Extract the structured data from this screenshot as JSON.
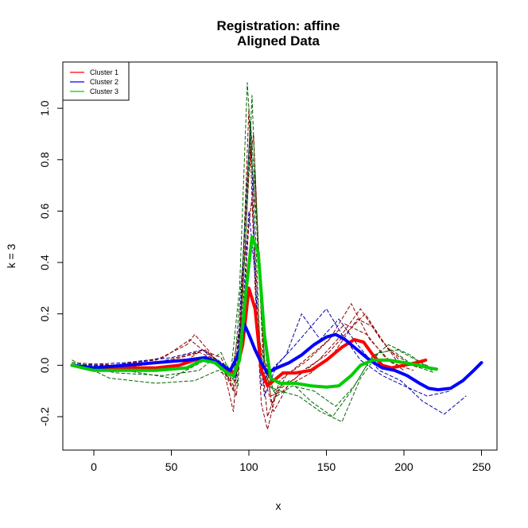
{
  "chart_data": {
    "type": "line",
    "title": "Registration: affine",
    "subtitle": "Aligned Data",
    "xlabel": "x",
    "ylabel": "k = 3",
    "xlim": [
      -20,
      260
    ],
    "ylim": [
      -0.33,
      1.18
    ],
    "x_ticks": [
      0,
      50,
      100,
      150,
      200,
      250
    ],
    "y_ticks": [
      -0.2,
      0.0,
      0.2,
      0.4,
      0.6,
      0.8,
      1.0
    ],
    "x_tick_labels": [
      "0",
      "50",
      "100",
      "150",
      "200",
      "250"
    ],
    "y_tick_labels": [
      "-0.2",
      "0.0",
      "0.2",
      "0.4",
      "0.6",
      "0.8",
      "1.0"
    ],
    "grid": false,
    "legend_position": "top-left",
    "legend": [
      {
        "label": "Cluster 1",
        "color": "#ff0000"
      },
      {
        "label": "Cluster 2",
        "color": "#0000ff"
      },
      {
        "label": "Cluster 3",
        "color": "#00cc00"
      }
    ],
    "series": [
      {
        "name": "Cluster 1",
        "role": "mean",
        "color": "#ff0000",
        "x": [
          -14,
          0,
          20,
          40,
          55,
          65,
          72,
          80,
          88,
          92,
          96,
          100,
          104,
          108,
          112,
          116,
          122,
          130,
          140,
          150,
          160,
          168,
          174,
          180,
          186,
          192,
          200,
          208,
          214
        ],
        "y": [
          0.0,
          -0.01,
          -0.01,
          -0.01,
          0.0,
          0.02,
          0.03,
          0.01,
          -0.03,
          -0.02,
          0.08,
          0.3,
          0.22,
          -0.02,
          -0.08,
          -0.06,
          -0.03,
          -0.03,
          -0.02,
          0.02,
          0.07,
          0.1,
          0.09,
          0.04,
          0.0,
          -0.01,
          0.0,
          0.01,
          0.02
        ]
      },
      {
        "name": "Cluster 2",
        "role": "mean",
        "color": "#0000ff",
        "x": [
          -14,
          0,
          20,
          40,
          60,
          72,
          80,
          88,
          94,
          97,
          100,
          104,
          108,
          112,
          118,
          126,
          134,
          142,
          150,
          156,
          162,
          170,
          178,
          186,
          194,
          202,
          210,
          216,
          222,
          230,
          238,
          245,
          250
        ],
        "y": [
          0.0,
          -0.01,
          0.0,
          0.01,
          0.02,
          0.03,
          0.01,
          -0.02,
          0.05,
          0.16,
          0.12,
          0.06,
          0.01,
          -0.03,
          -0.01,
          0.01,
          0.04,
          0.08,
          0.11,
          0.12,
          0.1,
          0.06,
          0.02,
          -0.01,
          -0.02,
          -0.04,
          -0.07,
          -0.09,
          -0.095,
          -0.09,
          -0.06,
          -0.02,
          0.01
        ]
      },
      {
        "name": "Cluster 3",
        "role": "mean",
        "color": "#00cc00",
        "x": [
          -14,
          0,
          20,
          40,
          60,
          70,
          78,
          86,
          90,
          94,
          98,
          102,
          106,
          110,
          114,
          120,
          130,
          140,
          150,
          158,
          166,
          172,
          180,
          190,
          200,
          210,
          216,
          221
        ],
        "y": [
          0.0,
          -0.02,
          -0.02,
          -0.02,
          -0.01,
          0.02,
          0.01,
          -0.03,
          -0.04,
          0.02,
          0.28,
          0.5,
          0.44,
          0.12,
          -0.05,
          -0.07,
          -0.07,
          -0.08,
          -0.085,
          -0.08,
          -0.04,
          0.0,
          0.02,
          0.02,
          0.01,
          0.0,
          -0.01,
          -0.015
        ]
      },
      {
        "name": "",
        "role": "individual",
        "color": "#8b0000",
        "x": [
          -14,
          10,
          40,
          60,
          65,
          75,
          85,
          90,
          95,
          100,
          104,
          108,
          112,
          118,
          130,
          145,
          160,
          172,
          185,
          200,
          210
        ],
        "y": [
          0.0,
          0.0,
          0.02,
          0.08,
          0.12,
          0.05,
          -0.05,
          -0.18,
          0.2,
          1.0,
          0.3,
          -0.15,
          -0.25,
          -0.1,
          -0.05,
          0.02,
          0.12,
          0.22,
          0.1,
          0.0,
          0.0
        ]
      },
      {
        "name": "",
        "role": "individual",
        "color": "#8b0000",
        "x": [
          -14,
          10,
          40,
          60,
          72,
          82,
          90,
          96,
          101,
          105,
          110,
          116,
          125,
          140,
          155,
          170,
          180,
          195,
          210
        ],
        "y": [
          0.0,
          -0.02,
          0.01,
          0.04,
          0.06,
          0.0,
          -0.1,
          0.3,
          0.85,
          0.55,
          -0.05,
          -0.18,
          -0.08,
          -0.03,
          0.05,
          0.18,
          0.15,
          0.02,
          -0.01
        ]
      },
      {
        "name": "",
        "role": "individual",
        "color": "#8b0000",
        "x": [
          -14,
          20,
          50,
          68,
          80,
          88,
          94,
          99,
          103,
          108,
          114,
          122,
          135,
          150,
          165,
          175,
          190,
          205
        ],
        "y": [
          0.0,
          -0.01,
          0.02,
          0.05,
          0.02,
          -0.06,
          0.15,
          0.7,
          0.9,
          0.2,
          -0.12,
          -0.1,
          -0.02,
          0.04,
          0.14,
          0.2,
          0.06,
          0.0
        ]
      },
      {
        "name": "",
        "role": "individual",
        "color": "#8b0000",
        "x": [
          -14,
          15,
          45,
          62,
          74,
          86,
          92,
          97,
          102,
          107,
          112,
          120,
          132,
          148,
          162,
          176,
          188,
          200
        ],
        "y": [
          0.01,
          0.0,
          0.03,
          0.1,
          0.04,
          -0.04,
          -0.12,
          0.4,
          0.65,
          0.1,
          -0.2,
          -0.06,
          0.0,
          0.08,
          0.16,
          0.12,
          0.03,
          -0.02
        ]
      },
      {
        "name": "",
        "role": "individual",
        "color": "#8b0000",
        "x": [
          -14,
          25,
          55,
          70,
          82,
          90,
          95,
          100,
          104,
          109,
          115,
          124,
          138,
          152,
          166,
          178,
          192,
          206
        ],
        "y": [
          0.0,
          -0.02,
          0.0,
          0.06,
          0.03,
          -0.08,
          0.05,
          0.55,
          0.75,
          0.05,
          -0.15,
          -0.04,
          0.02,
          0.1,
          0.24,
          0.1,
          0.01,
          -0.02
        ]
      },
      {
        "name": "",
        "role": "individual",
        "color": "#0000aa",
        "x": [
          -14,
          20,
          50,
          70,
          85,
          92,
          97,
          101,
          105,
          110,
          118,
          130,
          140,
          150,
          160,
          172,
          186,
          200,
          215,
          230
        ],
        "y": [
          0.0,
          0.01,
          0.03,
          0.06,
          0.0,
          -0.05,
          0.5,
          0.95,
          0.2,
          -0.12,
          0.0,
          0.08,
          0.15,
          0.22,
          0.12,
          0.02,
          -0.04,
          -0.08,
          -0.12,
          -0.1
        ]
      },
      {
        "name": "",
        "role": "individual",
        "color": "#0000aa",
        "x": [
          -14,
          30,
          60,
          80,
          90,
          96,
          100,
          104,
          108,
          114,
          124,
          134,
          146,
          158,
          170,
          184,
          198,
          212,
          226,
          240
        ],
        "y": [
          0.0,
          0.0,
          0.02,
          0.02,
          -0.04,
          0.2,
          0.6,
          0.35,
          -0.08,
          -0.02,
          0.04,
          0.2,
          0.1,
          0.18,
          0.08,
          -0.02,
          -0.06,
          -0.14,
          -0.19,
          -0.12
        ]
      },
      {
        "name": "",
        "role": "individual",
        "color": "#006400",
        "x": [
          -14,
          10,
          40,
          65,
          80,
          88,
          94,
          99,
          103,
          107,
          112,
          120,
          132,
          146,
          160,
          172,
          184,
          196,
          208,
          221
        ],
        "y": [
          0.02,
          -0.05,
          -0.07,
          -0.06,
          -0.02,
          -0.05,
          0.3,
          1.1,
          0.7,
          0.1,
          -0.08,
          -0.1,
          -0.12,
          -0.18,
          -0.22,
          -0.05,
          0.05,
          0.06,
          0.02,
          -0.02
        ]
      },
      {
        "name": "",
        "role": "individual",
        "color": "#006400",
        "x": [
          -14,
          15,
          45,
          68,
          82,
          90,
          96,
          101,
          105,
          110,
          116,
          126,
          140,
          154,
          166,
          178,
          190,
          204,
          218
        ],
        "y": [
          0.0,
          -0.03,
          -0.04,
          -0.02,
          0.05,
          -0.06,
          0.4,
          0.95,
          0.6,
          0.02,
          -0.1,
          -0.06,
          -0.14,
          -0.2,
          -0.1,
          0.02,
          0.08,
          0.04,
          -0.02
        ]
      },
      {
        "name": "",
        "role": "individual",
        "color": "#006400",
        "x": [
          -14,
          20,
          50,
          72,
          86,
          93,
          98,
          102,
          106,
          111,
          118,
          128,
          142,
          156,
          168,
          180,
          192,
          206,
          220
        ],
        "y": [
          0.01,
          -0.02,
          -0.05,
          0.02,
          0.0,
          -0.08,
          0.5,
          1.05,
          0.4,
          -0.05,
          -0.12,
          -0.08,
          -0.1,
          -0.16,
          -0.08,
          0.04,
          0.06,
          0.0,
          -0.03
        ]
      }
    ]
  }
}
